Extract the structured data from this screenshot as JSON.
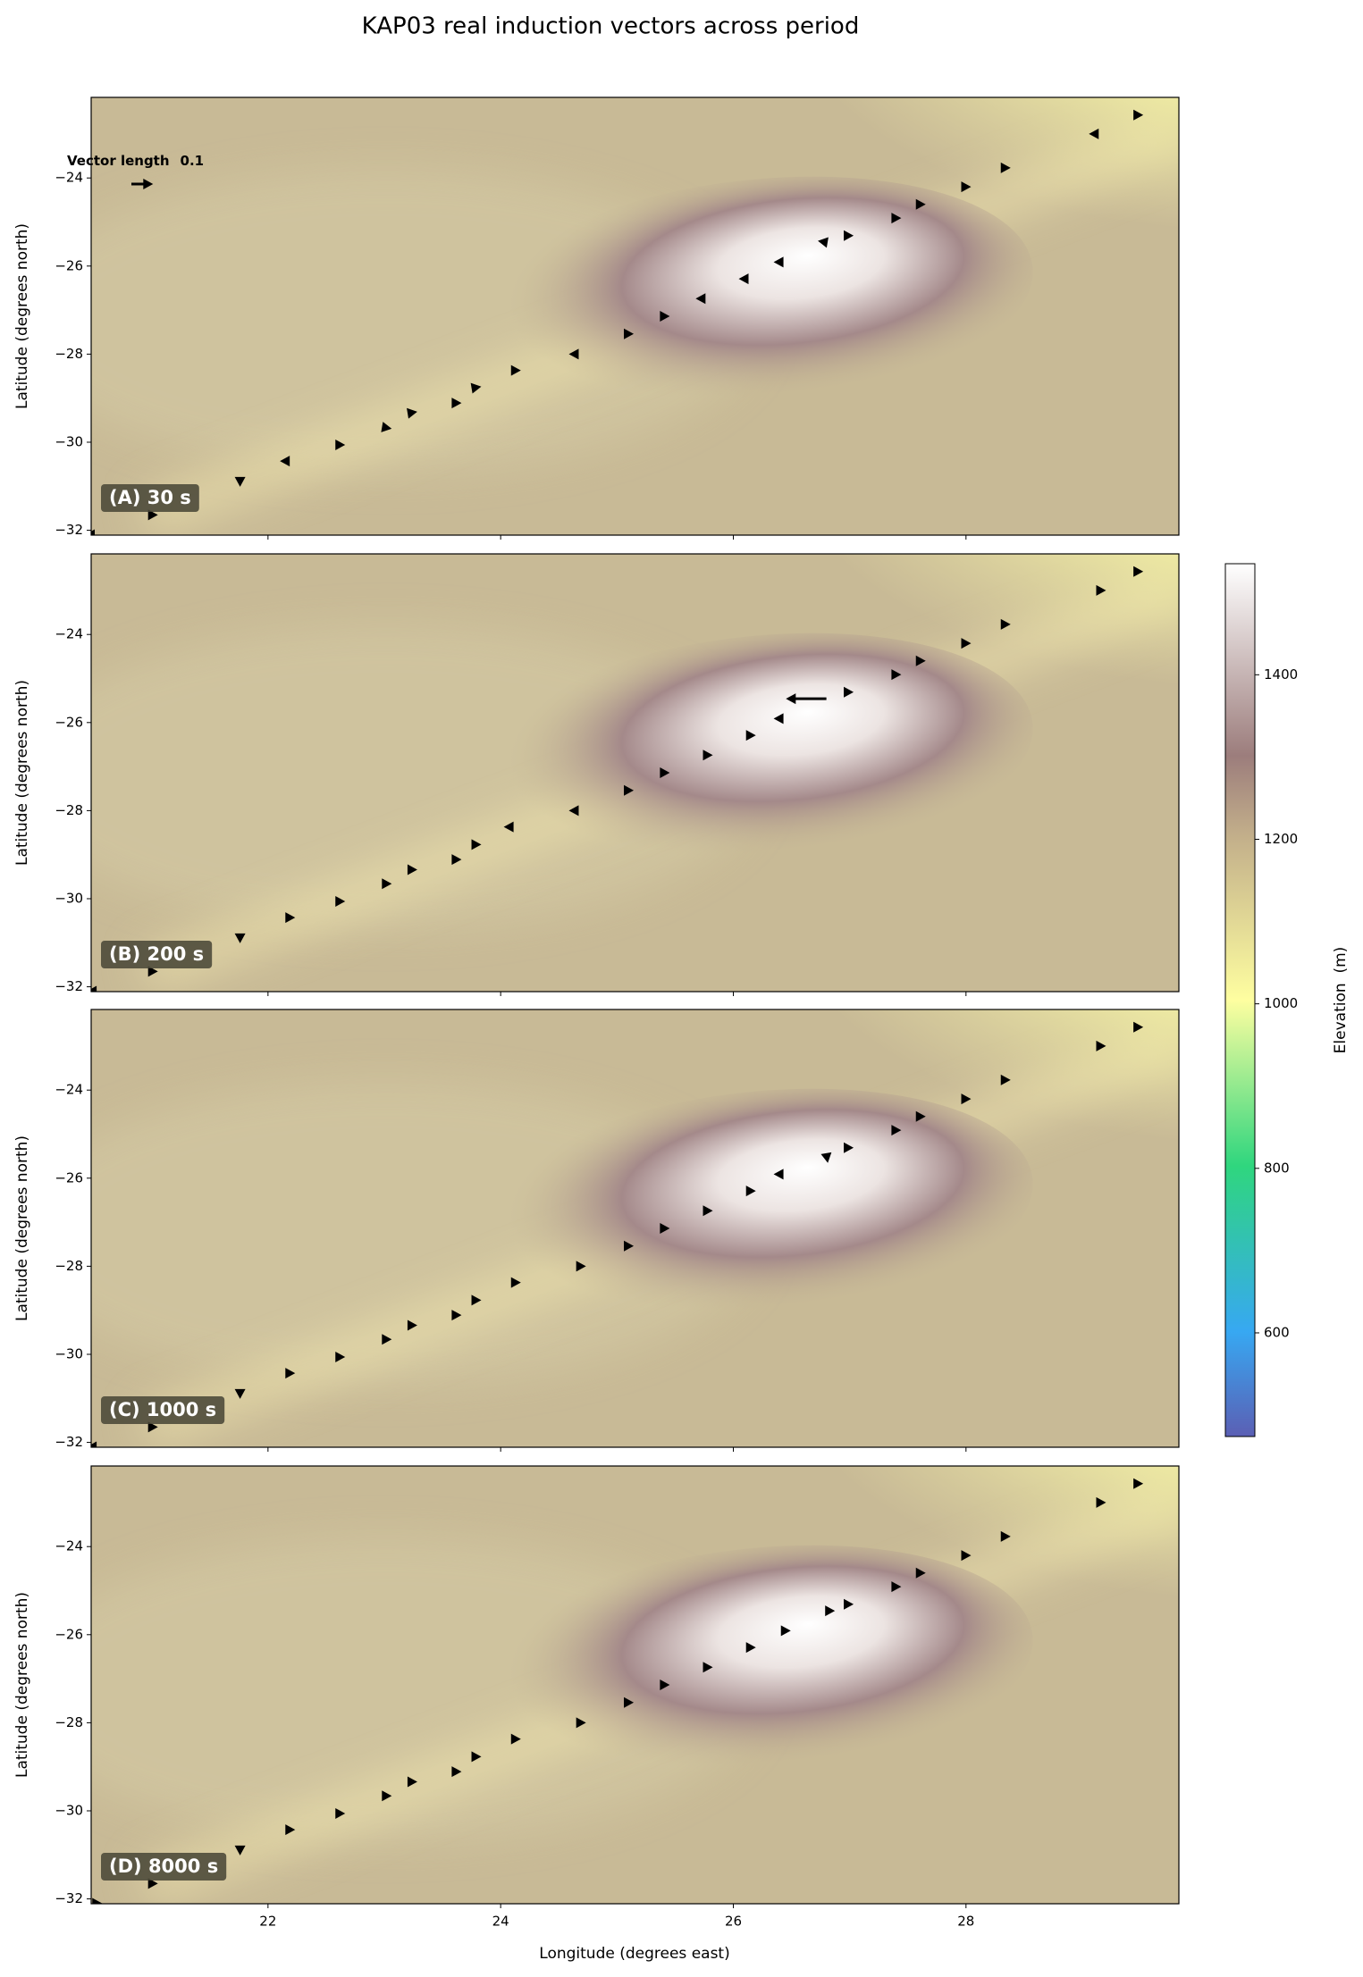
{
  "title": "KAP03 real induction vectors across period",
  "xlabel": "Longitude (degrees east)",
  "colorbar": {
    "label": "Elevation  (m)",
    "lim": [
      474,
      1535
    ],
    "ticks": [
      600,
      800,
      1000,
      1200,
      1400
    ]
  },
  "reference": {
    "text": "Vector length",
    "length": 0.1
  },
  "chart_data": [
    {
      "type": "quiver",
      "label": "(A) 30 s",
      "ylabel": "Latitude (degrees north)",
      "color": "#000000",
      "xlim": [
        20.48,
        29.83
      ],
      "ylim": [
        -32.11,
        -22.17
      ],
      "xticks": [
        22,
        24,
        26,
        28
      ],
      "yticks": [
        {
          "value": -24,
          "label": "−24"
        },
        {
          "value": -26,
          "label": "−26"
        },
        {
          "value": -28,
          "label": "−28"
        },
        {
          "value": -30,
          "label": "−30"
        },
        {
          "value": -32,
          "label": "−32"
        }
      ],
      "x": [
        20.5,
        20.98,
        21.76,
        22.16,
        22.59,
        22.99,
        23.21,
        23.59,
        23.76,
        24.1,
        24.66,
        25.07,
        25.38,
        25.75,
        26.12,
        26.42,
        26.8,
        26.96,
        27.37,
        27.58,
        27.97,
        28.31,
        29.13,
        29.45
      ],
      "y": [
        -32.1,
        -31.65,
        -30.86,
        -30.43,
        -30.06,
        -29.66,
        -29.34,
        -29.11,
        -28.77,
        -28.37,
        -28.0,
        -27.54,
        -27.14,
        -26.74,
        -26.29,
        -25.91,
        -25.46,
        -25.31,
        -24.91,
        -24.6,
        -24.2,
        -23.77,
        -23.0,
        -22.57
      ],
      "u": [
        -0.03,
        0.03,
        0,
        -0.02,
        0.03,
        0.03,
        0.03,
        0.03,
        0.03,
        0.03,
        -0.03,
        0.03,
        0.03,
        -0.03,
        -0.03,
        -0.03,
        -0.03,
        0.03,
        0.03,
        0.03,
        0.03,
        0.03,
        -0.03,
        0.03
      ],
      "v": [
        0,
        0,
        -0.02,
        0,
        0,
        -0.005,
        0.005,
        0,
        0.005,
        0,
        0,
        0,
        0,
        0,
        0,
        0,
        0.005,
        0,
        0,
        0,
        0,
        0,
        0,
        0
      ]
    },
    {
      "type": "quiver",
      "label": "(B) 200 s",
      "ylabel": "Latitude (degrees north)",
      "color": "#000000",
      "xlim": [
        20.48,
        29.83
      ],
      "ylim": [
        -32.11,
        -22.17
      ],
      "xticks": [
        22,
        24,
        26,
        28
      ],
      "yticks": [
        {
          "value": -24,
          "label": "−24"
        },
        {
          "value": -26,
          "label": "−26"
        },
        {
          "value": -28,
          "label": "−28"
        },
        {
          "value": -30,
          "label": "−30"
        },
        {
          "value": -32,
          "label": "−32"
        }
      ],
      "x": [
        20.5,
        20.98,
        21.76,
        22.16,
        22.59,
        22.99,
        23.21,
        23.59,
        23.76,
        24.1,
        24.66,
        25.07,
        25.38,
        25.75,
        26.12,
        26.42,
        26.8,
        26.96,
        27.37,
        27.58,
        27.97,
        28.31,
        29.13,
        29.45
      ],
      "y": [
        -32.1,
        -31.65,
        -30.86,
        -30.43,
        -30.06,
        -29.66,
        -29.34,
        -29.11,
        -28.77,
        -28.37,
        -28.0,
        -27.54,
        -27.14,
        -26.74,
        -26.29,
        -25.91,
        -25.46,
        -25.31,
        -24.91,
        -24.6,
        -24.2,
        -23.77,
        -23.0,
        -22.57
      ],
      "u": [
        -0.02,
        0.03,
        0,
        0.03,
        0.03,
        0.03,
        0.03,
        0.03,
        0.03,
        -0.03,
        -0.03,
        0.03,
        0.03,
        0.03,
        0.03,
        -0.03,
        -0.2,
        0.03,
        0.03,
        0.03,
        0.03,
        0.03,
        0.03,
        0.03
      ],
      "v": [
        0,
        0,
        -0.02,
        0,
        0,
        0,
        0,
        0,
        0,
        0,
        0,
        0,
        0,
        0,
        0,
        0,
        0,
        0,
        0,
        0,
        0,
        0,
        0,
        0
      ]
    },
    {
      "type": "quiver",
      "label": "(C) 1000 s",
      "ylabel": "Latitude (degrees north)",
      "color": "#000000",
      "xlim": [
        20.48,
        29.83
      ],
      "ylim": [
        -32.11,
        -22.17
      ],
      "xticks": [
        22,
        24,
        26,
        28
      ],
      "yticks": [
        {
          "value": -24,
          "label": "−24"
        },
        {
          "value": -26,
          "label": "−26"
        },
        {
          "value": -28,
          "label": "−28"
        },
        {
          "value": -30,
          "label": "−30"
        },
        {
          "value": -32,
          "label": "−32"
        }
      ],
      "x": [
        20.5,
        20.98,
        21.76,
        22.16,
        22.59,
        22.99,
        23.21,
        23.59,
        23.76,
        24.1,
        24.66,
        25.07,
        25.38,
        25.75,
        26.12,
        26.42,
        26.8,
        26.96,
        27.37,
        27.58,
        27.97,
        28.31,
        29.13,
        29.45
      ],
      "y": [
        -32.1,
        -31.65,
        -30.86,
        -30.43,
        -30.06,
        -29.66,
        -29.34,
        -29.11,
        -28.77,
        -28.37,
        -28.0,
        -27.54,
        -27.14,
        -26.74,
        -26.29,
        -25.91,
        -25.46,
        -25.31,
        -24.91,
        -24.6,
        -24.2,
        -23.77,
        -23.0,
        -22.57
      ],
      "u": [
        -0.02,
        0.03,
        0,
        0.03,
        0.03,
        0.03,
        0.03,
        0.03,
        0.03,
        0.03,
        0.03,
        0.03,
        0.03,
        0.03,
        0.03,
        -0.03,
        0.005,
        0.03,
        0.03,
        0.03,
        0.03,
        0.03,
        0.03,
        0.03
      ],
      "v": [
        0,
        0,
        -0.02,
        0,
        0,
        0,
        0,
        0,
        0,
        0,
        0,
        0,
        0,
        0,
        0,
        0,
        -0.03,
        0,
        0,
        0,
        0,
        0,
        0,
        0
      ]
    },
    {
      "type": "quiver",
      "label": "(D) 8000 s",
      "ylabel": "Latitude (degrees north)",
      "color": "#000000",
      "xlim": [
        20.48,
        29.83
      ],
      "ylim": [
        -32.11,
        -22.17
      ],
      "xticks": [
        22,
        24,
        26,
        28
      ],
      "yticks": [
        {
          "value": -24,
          "label": "−24"
        },
        {
          "value": -26,
          "label": "−26"
        },
        {
          "value": -28,
          "label": "−28"
        },
        {
          "value": -30,
          "label": "−30"
        },
        {
          "value": -32,
          "label": "−32"
        }
      ],
      "x": [
        20.5,
        20.98,
        21.76,
        22.16,
        22.59,
        22.99,
        23.21,
        23.59,
        23.76,
        24.1,
        24.66,
        25.07,
        25.38,
        25.75,
        26.12,
        26.42,
        26.8,
        26.96,
        27.37,
        27.58,
        27.97,
        28.31,
        29.13,
        29.45
      ],
      "y": [
        -32.1,
        -31.65,
        -30.86,
        -30.43,
        -30.06,
        -29.66,
        -29.34,
        -29.11,
        -28.77,
        -28.37,
        -28.0,
        -27.54,
        -27.14,
        -26.74,
        -26.29,
        -25.91,
        -25.46,
        -25.31,
        -24.91,
        -24.6,
        -24.2,
        -23.77,
        -23.0,
        -22.57
      ],
      "u": [
        0.03,
        0.03,
        0,
        0.03,
        0.03,
        0.03,
        0.03,
        0.03,
        0.03,
        0.03,
        0.03,
        0.03,
        0.03,
        0.03,
        0.03,
        0.03,
        0.03,
        0.03,
        0.03,
        0.03,
        0.03,
        0.03,
        0.03,
        0.03
      ],
      "v": [
        0,
        0,
        -0.02,
        0,
        0,
        0,
        0,
        0,
        0,
        0,
        0,
        0,
        0,
        0,
        0,
        0,
        0,
        0,
        0,
        0,
        0,
        0,
        0,
        0
      ]
    }
  ]
}
